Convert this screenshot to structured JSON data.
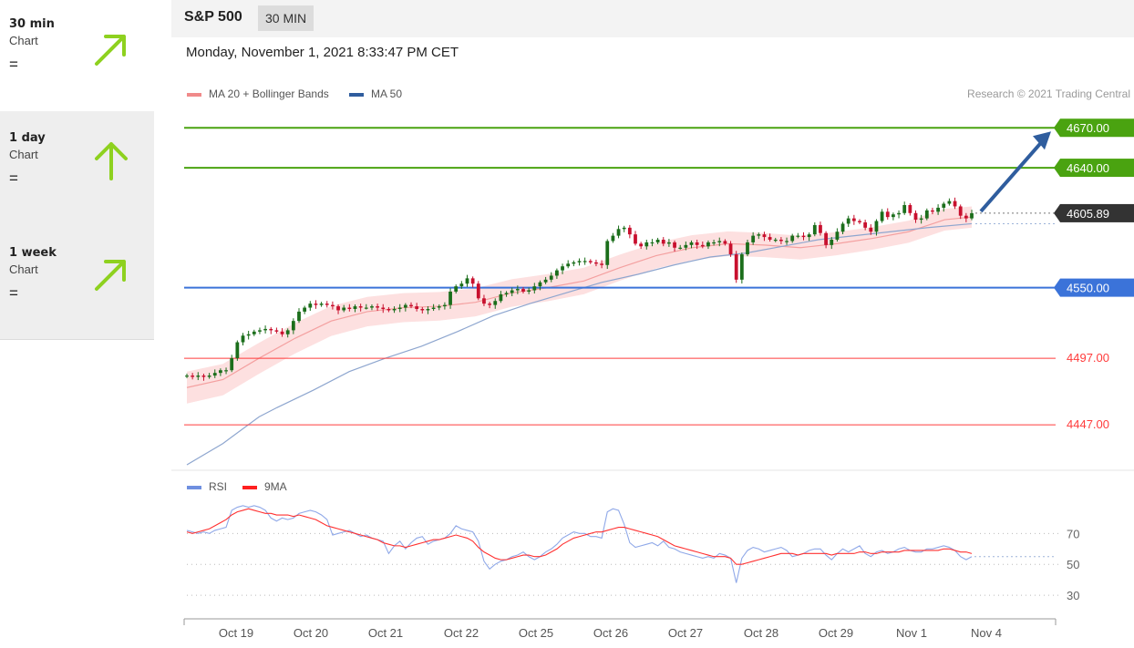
{
  "sidebar": {
    "items": [
      {
        "title": "30 min",
        "sub": "Chart",
        "trend": "=",
        "arrow": "up-right-arrow",
        "color": "#8ed11f"
      },
      {
        "title": "1 day",
        "sub": "Chart",
        "trend": "=",
        "arrow": "up-arrow",
        "color": "#8ed11f"
      },
      {
        "title": "1 week",
        "sub": "Chart",
        "trend": "=",
        "arrow": "up-right-arrow",
        "color": "#8ed11f"
      }
    ]
  },
  "header": {
    "symbol": "S&P 500",
    "timeframe": "30 MIN",
    "datetime": "Monday, November 1, 2021 8:33:47 PM CET"
  },
  "chart_data": [
    {
      "type": "candlestick",
      "legend": [
        {
          "label": "MA 20 + Bollinger Bands",
          "color": "#f08a8a"
        },
        {
          "label": "MA 50",
          "color": "#2f5d9e"
        }
      ],
      "attribution": "Research © 2021 Trading Central",
      "x_labels": [
        "Oct 19",
        "Oct 20",
        "Oct 21",
        "Oct 22",
        "Oct 25",
        "Oct 26",
        "Oct 27",
        "Oct 28",
        "Oct 29",
        "Nov 1",
        "Nov 4"
      ],
      "ylim": [
        4417,
        4677
      ],
      "last_price": 4605.89,
      "levels": [
        {
          "value": 4670.0,
          "label": "4670.00",
          "color": "#4aa310",
          "kind": "target"
        },
        {
          "value": 4640.0,
          "label": "4640.00",
          "color": "#4aa310",
          "kind": "target"
        },
        {
          "value": 4550.0,
          "label": "4550.00",
          "color": "#3b73d9",
          "kind": "pivot"
        },
        {
          "value": 4497.0,
          "label": "4497.00",
          "color": "#ff3b3b",
          "kind": "support"
        },
        {
          "value": 4447.0,
          "label": "4447.00",
          "color": "#ff3b3b",
          "kind": "support"
        }
      ],
      "closes": [
        4484,
        4483,
        4484,
        4483,
        4484,
        4486,
        4488,
        4488,
        4497,
        4509,
        4514,
        4515,
        4517,
        4518,
        4519,
        4518,
        4517,
        4515,
        4518,
        4525,
        4532,
        4535,
        4538,
        4537,
        4538,
        4537,
        4536,
        4533,
        4535,
        4534,
        4536,
        4535,
        4535,
        4536,
        4535,
        4534,
        4533,
        4534,
        4535,
        4537,
        4536,
        4534,
        4533,
        4534,
        4535,
        4536,
        4537,
        4547,
        4551,
        4553,
        4557,
        4553,
        4542,
        4538,
        4537,
        4540,
        4545,
        4546,
        4548,
        4549,
        4547,
        4548,
        4551,
        4554,
        4556,
        4559,
        4563,
        4566,
        4568,
        4569,
        4570,
        4570,
        4569,
        4568,
        4567,
        4585,
        4589,
        4594,
        4595,
        4590,
        4583,
        4581,
        4584,
        4584,
        4586,
        4583,
        4584,
        4580,
        4580,
        4582,
        4584,
        4582,
        4581,
        4584,
        4584,
        4585,
        4583,
        4575,
        4556,
        4575,
        4584,
        4589,
        4590,
        4588,
        4586,
        4586,
        4585,
        4585,
        4589,
        4589,
        4588,
        4590,
        4597,
        4591,
        4582,
        4586,
        4592,
        4598,
        4602,
        4600,
        4599,
        4595,
        4592,
        4600,
        4607,
        4603,
        4605,
        4606,
        4612,
        4606,
        4601,
        4602,
        4608,
        4607,
        4610,
        4613,
        4615,
        4611,
        4604,
        4602,
        4605.89
      ],
      "ma20_points": [
        [
          0,
          4475
        ],
        [
          40,
          4481
        ],
        [
          80,
          4497
        ],
        [
          120,
          4512
        ],
        [
          160,
          4525
        ],
        [
          200,
          4532
        ],
        [
          240,
          4535
        ],
        [
          280,
          4536
        ],
        [
          320,
          4539
        ],
        [
          360,
          4546
        ],
        [
          400,
          4550
        ],
        [
          440,
          4555
        ],
        [
          480,
          4565
        ],
        [
          520,
          4574
        ],
        [
          560,
          4580
        ],
        [
          600,
          4583
        ],
        [
          640,
          4582
        ],
        [
          680,
          4580
        ],
        [
          720,
          4583
        ],
        [
          760,
          4587
        ],
        [
          800,
          4592
        ],
        [
          840,
          4601
        ],
        [
          870,
          4603
        ]
      ],
      "ma50_points": [
        [
          0,
          4417
        ],
        [
          40,
          4433
        ],
        [
          80,
          4453
        ],
        [
          100,
          4460
        ],
        [
          140,
          4473
        ],
        [
          180,
          4487
        ],
        [
          220,
          4497
        ],
        [
          260,
          4506
        ],
        [
          300,
          4517
        ],
        [
          340,
          4529
        ],
        [
          380,
          4538
        ],
        [
          420,
          4546
        ],
        [
          460,
          4554
        ],
        [
          500,
          4560
        ],
        [
          540,
          4567
        ],
        [
          580,
          4573
        ],
        [
          620,
          4576
        ],
        [
          660,
          4581
        ],
        [
          700,
          4586
        ],
        [
          740,
          4589
        ],
        [
          780,
          4592
        ],
        [
          820,
          4595
        ],
        [
          870,
          4598
        ]
      ],
      "trend_arrow": {
        "from_value": 4605.89,
        "to_value": 4670.0,
        "color": "#2f5d9e"
      }
    },
    {
      "type": "line",
      "legend": [
        {
          "label": "RSI",
          "color": "#6f8fe0"
        },
        {
          "label": "9MA",
          "color": "#ff2020"
        }
      ],
      "ylim": [
        20,
        95
      ],
      "levels": [
        {
          "value": 70,
          "label": "70"
        },
        {
          "value": 50,
          "label": "50"
        },
        {
          "value": 30,
          "label": "30"
        }
      ],
      "rsi": [
        72,
        71,
        70,
        71,
        70,
        72,
        73,
        74,
        85,
        87,
        88,
        87,
        88,
        87,
        85,
        80,
        78,
        80,
        79,
        80,
        83,
        84,
        85,
        84,
        82,
        79,
        69,
        70,
        71,
        72,
        70,
        68,
        69,
        67,
        66,
        65,
        57,
        62,
        65,
        60,
        64,
        67,
        68,
        63,
        65,
        66,
        67,
        70,
        75,
        73,
        72,
        71,
        65,
        52,
        47,
        50,
        52,
        53,
        55,
        56,
        58,
        55,
        53,
        55,
        58,
        60,
        63,
        67,
        69,
        71,
        70,
        70,
        68,
        68,
        67,
        84,
        86,
        85,
        76,
        64,
        61,
        62,
        63,
        64,
        62,
        65,
        61,
        60,
        58,
        57,
        56,
        55,
        54,
        55,
        54,
        57,
        56,
        54,
        38,
        54,
        59,
        61,
        60,
        58,
        59,
        60,
        61,
        59,
        55,
        56,
        57,
        59,
        60,
        60,
        56,
        53,
        57,
        60,
        58,
        60,
        62,
        57,
        55,
        58,
        59,
        57,
        58,
        60,
        61,
        59,
        58,
        58,
        60,
        60,
        61,
        62,
        61,
        59,
        55,
        53,
        55
      ],
      "ma9": [
        71,
        70,
        71,
        72,
        73,
        75,
        77,
        79,
        82,
        84,
        85,
        86,
        85,
        84,
        83,
        83,
        82,
        82,
        82,
        81,
        82,
        81,
        80,
        79,
        77,
        75,
        74,
        73,
        72,
        71,
        70,
        69,
        68,
        67,
        66,
        64,
        63,
        62,
        62,
        61,
        62,
        63,
        64,
        65,
        66,
        66,
        67,
        68,
        69,
        68,
        67,
        65,
        61,
        58,
        56,
        54,
        53,
        53,
        54,
        55,
        56,
        56,
        55,
        55,
        56,
        58,
        60,
        63,
        65,
        67,
        68,
        69,
        70,
        71,
        71,
        72,
        73,
        74,
        74,
        73,
        72,
        71,
        70,
        69,
        68,
        66,
        64,
        62,
        61,
        60,
        59,
        58,
        57,
        56,
        55,
        55,
        55,
        54,
        50,
        50,
        51,
        52,
        53,
        54,
        55,
        56,
        57,
        57,
        57,
        56,
        57,
        57,
        57,
        57,
        57,
        56,
        57,
        57,
        57,
        57,
        58,
        58,
        57,
        57,
        58,
        58,
        58,
        58,
        59,
        59,
        59,
        59,
        59,
        59,
        59,
        60,
        60,
        59,
        58,
        58,
        57
      ]
    }
  ]
}
